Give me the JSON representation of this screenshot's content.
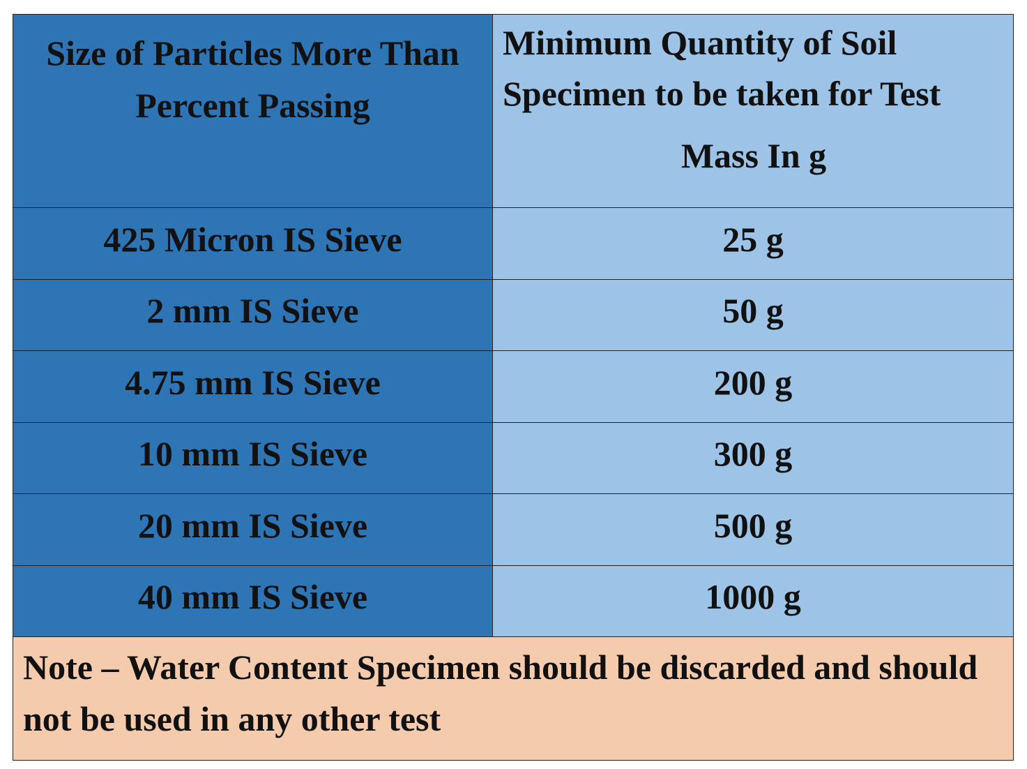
{
  "header": {
    "col1": "Size of Particles More Than Percent Passing",
    "col2_line1": "Minimum Quantity of Soil Specimen to be taken for Test",
    "col2_line2": "Mass In g"
  },
  "rows": [
    {
      "sieve": "425 Micron IS Sieve",
      "mass": "25 g"
    },
    {
      "sieve": "2 mm IS Sieve",
      "mass": "50 g"
    },
    {
      "sieve": "4.75 mm IS Sieve",
      "mass": "200 g"
    },
    {
      "sieve": "10 mm IS Sieve",
      "mass": "300 g"
    },
    {
      "sieve": "20 mm IS Sieve",
      "mass": "500 g"
    },
    {
      "sieve": "40 mm IS Sieve",
      "mass": "1000 g"
    }
  ],
  "note": "Note – Water Content Specimen should be discarded and should not be used in any other test",
  "colors": {
    "left_column": "#2e75b6",
    "right_column": "#9dc3e6",
    "note_row": "#f5cbad"
  }
}
